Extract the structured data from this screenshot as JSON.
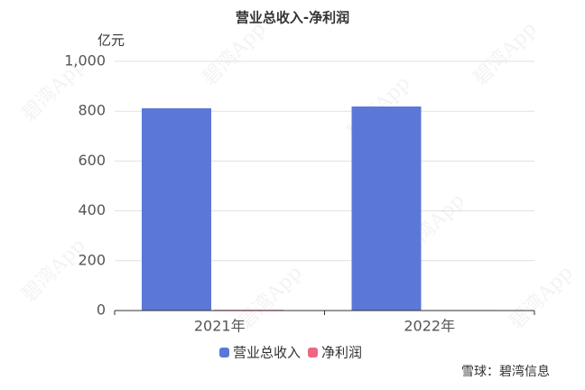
{
  "chart_data": {
    "type": "bar",
    "title": "营业总收入-净利润",
    "y_label": "亿元",
    "categories": [
      "2021年",
      "2022年"
    ],
    "series": [
      {
        "name": "营业总收入",
        "color": "#5b78d8",
        "values": [
          812,
          819
        ]
      },
      {
        "name": "净利润",
        "color": "#ee6682",
        "values": [
          3,
          2
        ]
      }
    ],
    "ylim": [
      0,
      1000
    ],
    "yticks": [
      0,
      200,
      400,
      600,
      800,
      {
        "value": 1000,
        "label": "1,000"
      }
    ],
    "grid": true,
    "legend": "bottom",
    "watermark": "碧湾App",
    "footer": "雪球：碧湾信息"
  }
}
